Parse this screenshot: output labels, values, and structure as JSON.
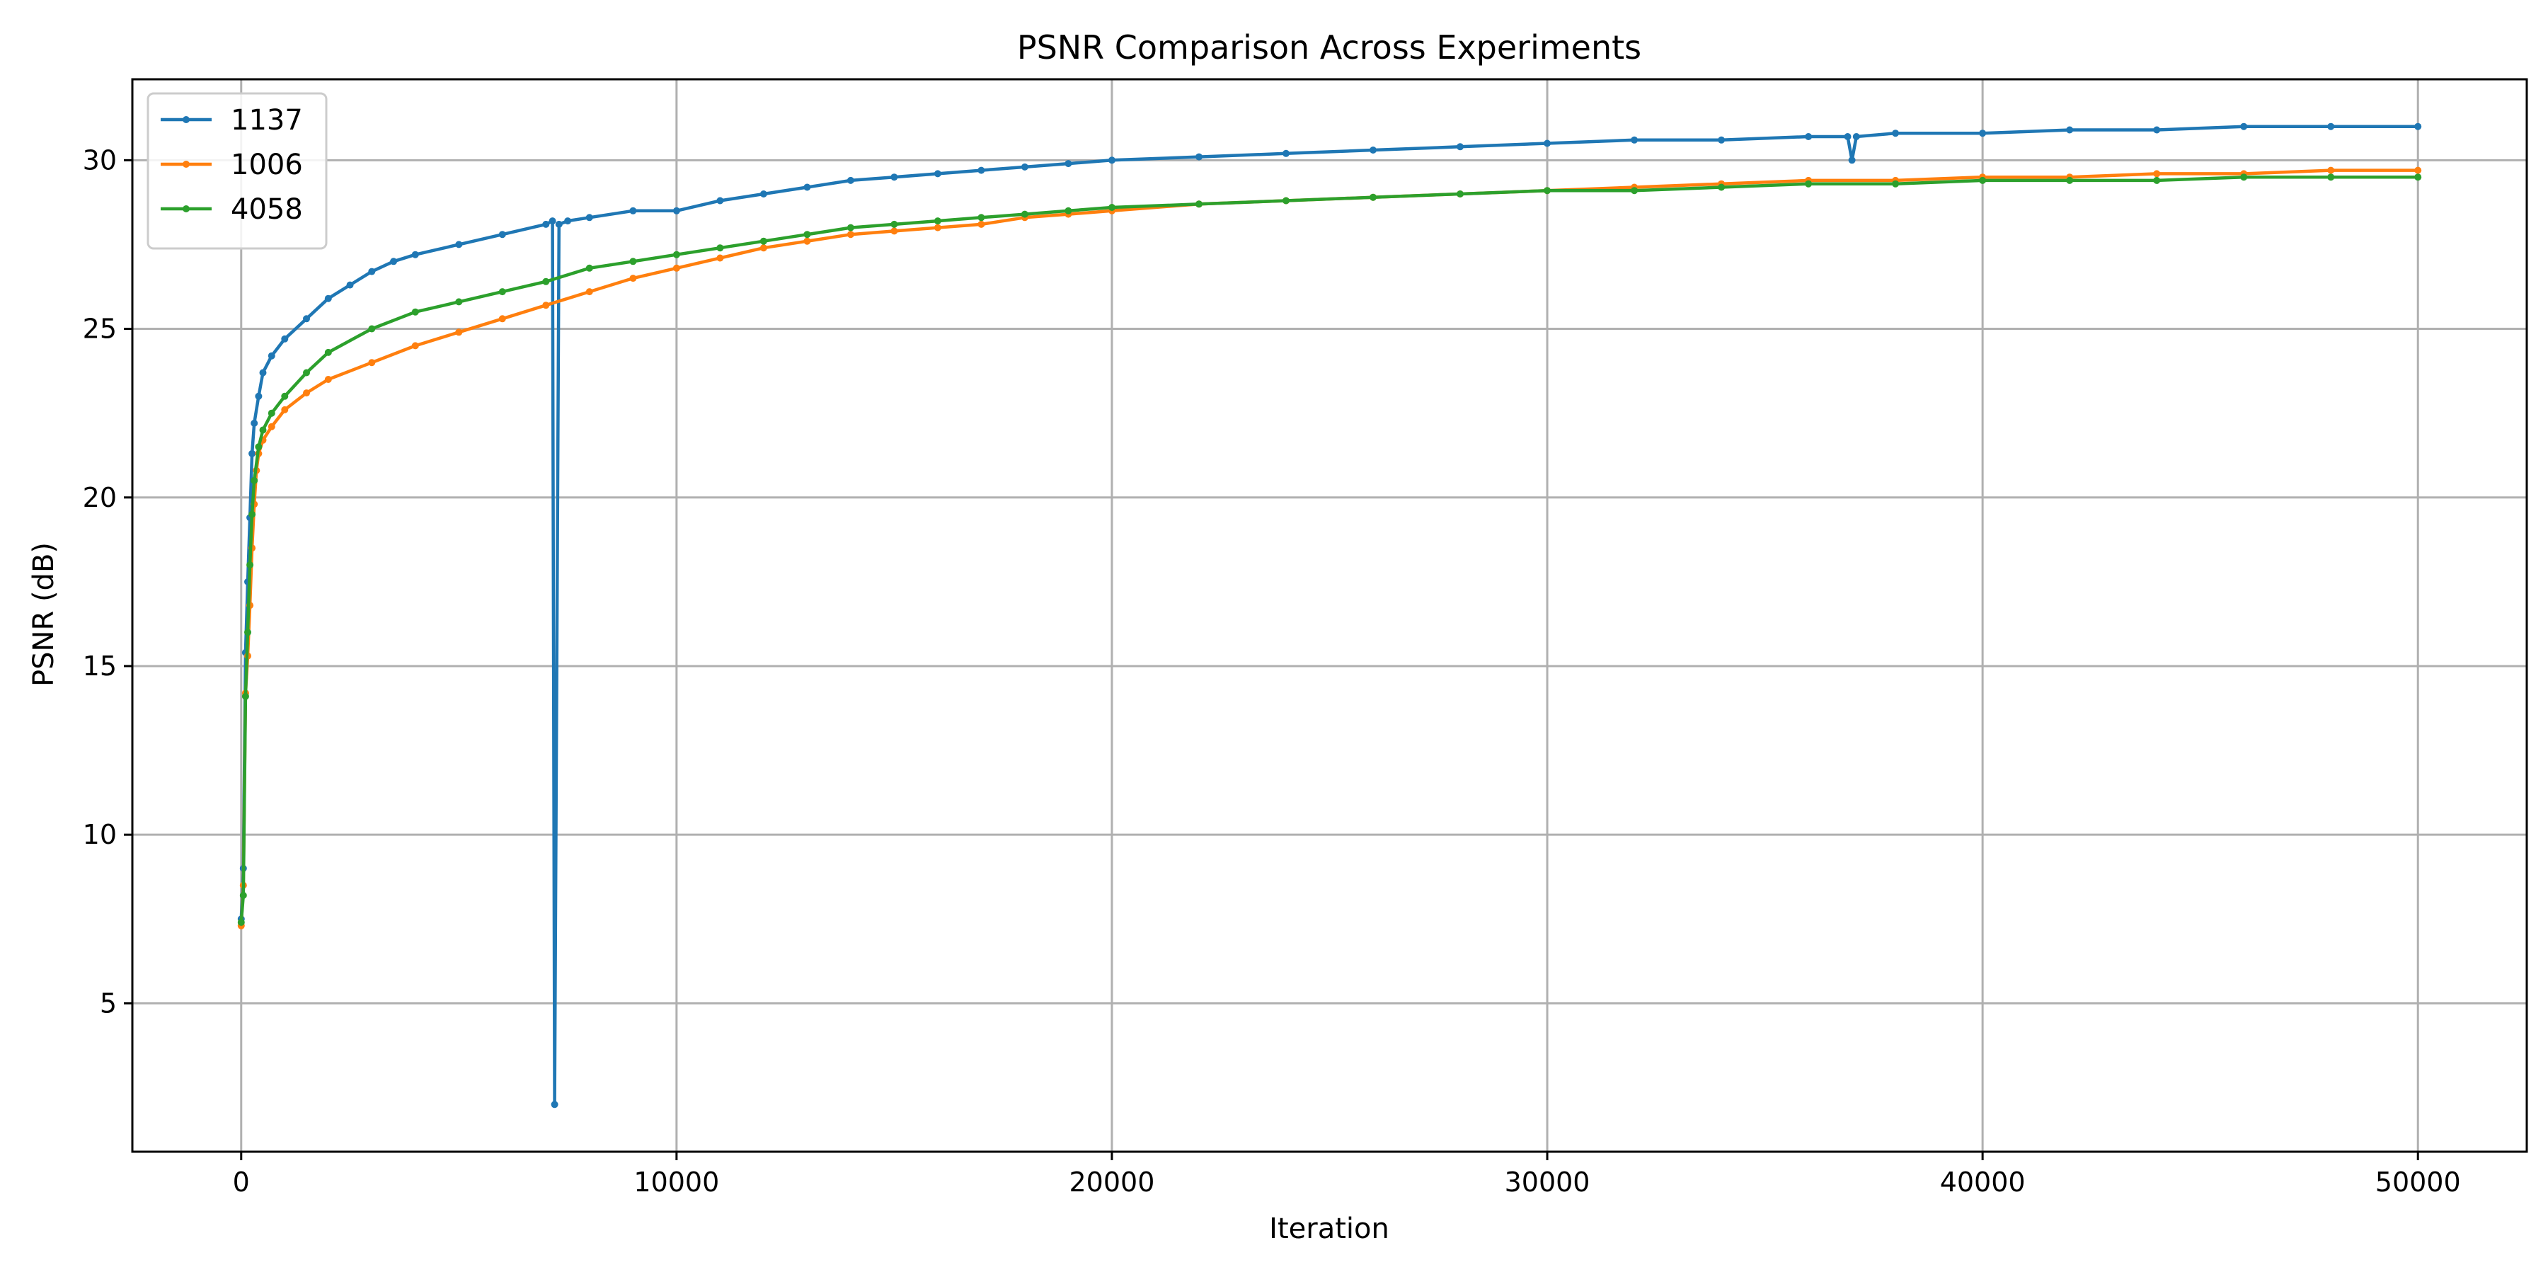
{
  "chart_data": {
    "type": "line",
    "title": "PSNR Comparison Across Experiments",
    "xlabel": "Iteration",
    "ylabel": "PSNR (dB)",
    "xlim": [
      -2500,
      52500
    ],
    "ylim": [
      0.6,
      32.4
    ],
    "xticks": [
      0,
      10000,
      20000,
      30000,
      40000,
      50000
    ],
    "xtick_labels": [
      "0",
      "10000",
      "20000",
      "30000",
      "40000",
      "50000"
    ],
    "yticks": [
      5,
      10,
      15,
      20,
      25,
      30
    ],
    "ytick_labels": [
      "5",
      "10",
      "15",
      "20",
      "25",
      "30"
    ],
    "grid": true,
    "legend_position": "top-left",
    "marker": "dot",
    "series": [
      {
        "name": "1137",
        "color": "#1f77b4",
        "points": [
          [
            0,
            7.5
          ],
          [
            50,
            9.0
          ],
          [
            100,
            15.4
          ],
          [
            150,
            17.5
          ],
          [
            200,
            19.4
          ],
          [
            250,
            21.3
          ],
          [
            300,
            22.2
          ],
          [
            400,
            23.0
          ],
          [
            500,
            23.7
          ],
          [
            700,
            24.2
          ],
          [
            1000,
            24.7
          ],
          [
            1500,
            25.3
          ],
          [
            2000,
            25.9
          ],
          [
            2500,
            26.3
          ],
          [
            3000,
            26.7
          ],
          [
            3500,
            27.0
          ],
          [
            4000,
            27.2
          ],
          [
            5000,
            27.5
          ],
          [
            6000,
            27.8
          ],
          [
            7000,
            28.1
          ],
          [
            7150,
            28.2
          ],
          [
            7200,
            2.0
          ],
          [
            7300,
            28.1
          ],
          [
            7500,
            28.2
          ],
          [
            8000,
            28.3
          ],
          [
            9000,
            28.5
          ],
          [
            10000,
            28.5
          ],
          [
            11000,
            28.8
          ],
          [
            12000,
            29.0
          ],
          [
            13000,
            29.2
          ],
          [
            14000,
            29.4
          ],
          [
            15000,
            29.5
          ],
          [
            16000,
            29.6
          ],
          [
            17000,
            29.7
          ],
          [
            18000,
            29.8
          ],
          [
            19000,
            29.9
          ],
          [
            20000,
            30.0
          ],
          [
            22000,
            30.1
          ],
          [
            24000,
            30.2
          ],
          [
            26000,
            30.3
          ],
          [
            28000,
            30.4
          ],
          [
            30000,
            30.5
          ],
          [
            32000,
            30.6
          ],
          [
            34000,
            30.6
          ],
          [
            36000,
            30.7
          ],
          [
            36900,
            30.7
          ],
          [
            37000,
            30.0
          ],
          [
            37100,
            30.7
          ],
          [
            38000,
            30.8
          ],
          [
            40000,
            30.8
          ],
          [
            42000,
            30.9
          ],
          [
            44000,
            30.9
          ],
          [
            46000,
            31.0
          ],
          [
            48000,
            31.0
          ],
          [
            50000,
            31.0
          ]
        ]
      },
      {
        "name": "1006",
        "color": "#ff7f0e",
        "points": [
          [
            0,
            7.3
          ],
          [
            50,
            8.5
          ],
          [
            100,
            14.2
          ],
          [
            150,
            15.3
          ],
          [
            200,
            16.8
          ],
          [
            250,
            18.5
          ],
          [
            300,
            19.8
          ],
          [
            350,
            20.8
          ],
          [
            400,
            21.3
          ],
          [
            500,
            21.7
          ],
          [
            700,
            22.1
          ],
          [
            1000,
            22.6
          ],
          [
            1500,
            23.1
          ],
          [
            2000,
            23.5
          ],
          [
            3000,
            24.0
          ],
          [
            4000,
            24.5
          ],
          [
            5000,
            24.9
          ],
          [
            6000,
            25.3
          ],
          [
            7000,
            25.7
          ],
          [
            8000,
            26.1
          ],
          [
            9000,
            26.5
          ],
          [
            10000,
            26.8
          ],
          [
            11000,
            27.1
          ],
          [
            12000,
            27.4
          ],
          [
            13000,
            27.6
          ],
          [
            14000,
            27.8
          ],
          [
            15000,
            27.9
          ],
          [
            16000,
            28.0
          ],
          [
            17000,
            28.1
          ],
          [
            18000,
            28.3
          ],
          [
            19000,
            28.4
          ],
          [
            20000,
            28.5
          ],
          [
            22000,
            28.7
          ],
          [
            24000,
            28.8
          ],
          [
            26000,
            28.9
          ],
          [
            28000,
            29.0
          ],
          [
            30000,
            29.1
          ],
          [
            32000,
            29.2
          ],
          [
            34000,
            29.3
          ],
          [
            36000,
            29.4
          ],
          [
            38000,
            29.4
          ],
          [
            40000,
            29.5
          ],
          [
            42000,
            29.5
          ],
          [
            44000,
            29.6
          ],
          [
            46000,
            29.6
          ],
          [
            48000,
            29.7
          ],
          [
            50000,
            29.7
          ]
        ]
      },
      {
        "name": "4058",
        "color": "#2ca02c",
        "points": [
          [
            0,
            7.4
          ],
          [
            50,
            8.2
          ],
          [
            100,
            14.1
          ],
          [
            150,
            16.0
          ],
          [
            200,
            18.0
          ],
          [
            250,
            19.5
          ],
          [
            300,
            20.5
          ],
          [
            400,
            21.5
          ],
          [
            500,
            22.0
          ],
          [
            700,
            22.5
          ],
          [
            1000,
            23.0
          ],
          [
            1500,
            23.7
          ],
          [
            2000,
            24.3
          ],
          [
            3000,
            25.0
          ],
          [
            4000,
            25.5
          ],
          [
            5000,
            25.8
          ],
          [
            6000,
            26.1
          ],
          [
            7000,
            26.4
          ],
          [
            8000,
            26.8
          ],
          [
            9000,
            27.0
          ],
          [
            10000,
            27.2
          ],
          [
            11000,
            27.4
          ],
          [
            12000,
            27.6
          ],
          [
            13000,
            27.8
          ],
          [
            14000,
            28.0
          ],
          [
            15000,
            28.1
          ],
          [
            16000,
            28.2
          ],
          [
            17000,
            28.3
          ],
          [
            18000,
            28.4
          ],
          [
            19000,
            28.5
          ],
          [
            20000,
            28.6
          ],
          [
            22000,
            28.7
          ],
          [
            24000,
            28.8
          ],
          [
            26000,
            28.9
          ],
          [
            28000,
            29.0
          ],
          [
            30000,
            29.1
          ],
          [
            32000,
            29.1
          ],
          [
            34000,
            29.2
          ],
          [
            36000,
            29.3
          ],
          [
            38000,
            29.3
          ],
          [
            40000,
            29.4
          ],
          [
            42000,
            29.4
          ],
          [
            44000,
            29.4
          ],
          [
            46000,
            29.5
          ],
          [
            48000,
            29.5
          ],
          [
            50000,
            29.5
          ]
        ]
      }
    ]
  }
}
